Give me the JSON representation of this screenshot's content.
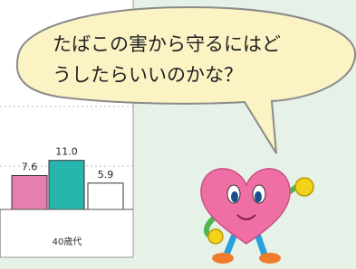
{
  "chart_data": {
    "type": "bar",
    "category": "40歳代",
    "values": [
      7.6,
      11.0,
      5.9
    ],
    "value_labels": [
      "7.6",
      "11.0",
      "5.9"
    ],
    "colors": [
      "#e67fb0",
      "#27b6ae",
      "#ffffff"
    ],
    "ylim": [
      0,
      47
    ]
  },
  "speech_bubble": [
    "たばこの害から守るにはど",
    "うしたらいいのかな？"
  ]
}
